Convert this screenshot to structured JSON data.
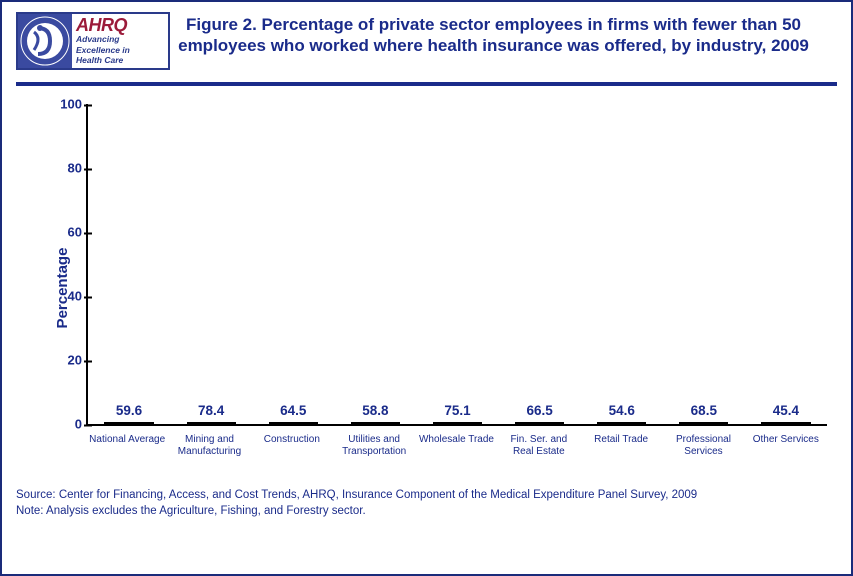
{
  "logo": {
    "ahrq": "AHRQ",
    "tagline1": "Advancing",
    "tagline2": "Excellence in",
    "tagline3": "Health Care"
  },
  "title": "Figure 2. Percentage of private sector employees in firms with fewer than 50 employees who worked where health insurance was offered, by industry, 2009",
  "chart": {
    "type": "bar",
    "ylabel": "Percentage",
    "ylim": [
      0,
      100
    ],
    "ytick_step": 20,
    "yticks": [
      0,
      20,
      40,
      60,
      80,
      100
    ],
    "bar_width": 0.6,
    "bar_border": "#000000",
    "accent_color": "#f2b90e",
    "series_color": "#2753a5",
    "background_color": "#ffffff",
    "title_fontsize": 17,
    "label_fontsize": 15,
    "tick_fontsize": 13,
    "value_fontsize": 13.5,
    "xlabel_fontsize": 10,
    "categories": [
      "National Average",
      "Mining and Manufacturing",
      "Construction",
      "Utilities and Transportation",
      "Wholesale Trade",
      "Fin. Ser. and Real Estate",
      "Retail Trade",
      "Professional Services",
      "Other Services"
    ],
    "values": [
      59.6,
      78.4,
      64.5,
      58.8,
      75.1,
      66.5,
      54.6,
      68.5,
      45.4
    ],
    "bar_colors": [
      "#f2b90e",
      "#2753a5",
      "#2753a5",
      "#2753a5",
      "#2753a5",
      "#2753a5",
      "#2753a5",
      "#2753a5",
      "#2753a5"
    ]
  },
  "source": "Source: Center for Financing, Access, and Cost Trends, AHRQ, Insurance Component of the Medical Expenditure Panel Survey, 2009",
  "note": "Note: Analysis excludes the Agriculture, Fishing, and Forestry sector."
}
